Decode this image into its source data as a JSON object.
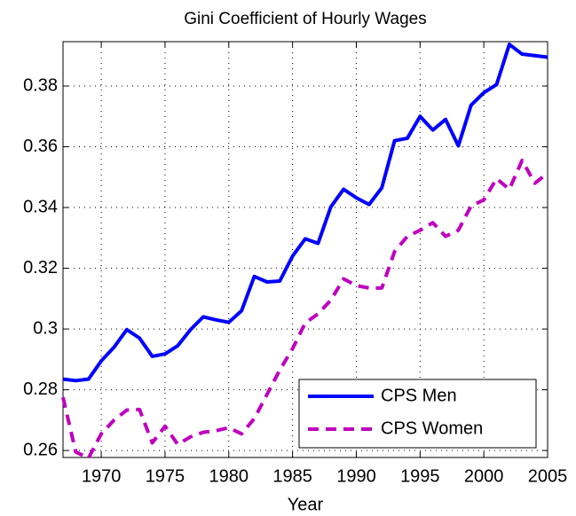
{
  "chart_data": {
    "type": "line",
    "title": "Gini Coefficient of Hourly Wages",
    "x_label": "Year",
    "x": [
      1967,
      1968,
      1969,
      1970,
      1971,
      1972,
      1973,
      1974,
      1975,
      1976,
      1977,
      1978,
      1979,
      1980,
      1981,
      1982,
      1983,
      1984,
      1985,
      1986,
      1987,
      1988,
      1989,
      1990,
      1991,
      1992,
      1993,
      1994,
      1995,
      1996,
      1997,
      1998,
      1999,
      2000,
      2001,
      2002,
      2003,
      2004,
      2005
    ],
    "series": [
      {
        "name": "CPS Men",
        "color": "#0000ff",
        "dash": false,
        "values": [
          0.2835,
          0.283,
          0.2835,
          0.2895,
          0.294,
          0.2998,
          0.297,
          0.291,
          0.2918,
          0.2945,
          0.2998,
          0.304,
          0.303,
          0.3022,
          0.306,
          0.3173,
          0.3155,
          0.3158,
          0.324,
          0.3297,
          0.3282,
          0.3402,
          0.346,
          0.3432,
          0.341,
          0.3465,
          0.362,
          0.3628,
          0.37,
          0.3655,
          0.369,
          0.3603,
          0.3737,
          0.3778,
          0.3805,
          0.3937,
          0.3905,
          0.39,
          0.3895
        ]
      },
      {
        "name": "CPS Women",
        "color": "#bf00bf",
        "dash": true,
        "values": [
          0.2775,
          0.2595,
          0.2575,
          0.2655,
          0.27,
          0.2733,
          0.2735,
          0.2625,
          0.268,
          0.262,
          0.2645,
          0.266,
          0.2665,
          0.2675,
          0.2655,
          0.2705,
          0.2785,
          0.2865,
          0.2935,
          0.302,
          0.305,
          0.3095,
          0.3165,
          0.3143,
          0.3135,
          0.3135,
          0.3255,
          0.3305,
          0.3325,
          0.335,
          0.3305,
          0.3325,
          0.3405,
          0.3425,
          0.3495,
          0.346,
          0.3555,
          0.348,
          0.3513
        ]
      }
    ],
    "xlim": [
      1967,
      2005
    ],
    "xticks": [
      1970,
      1975,
      1980,
      1985,
      1990,
      1995,
      2000,
      2005
    ],
    "ylim": [
      0.2577,
      0.3946
    ],
    "yticks": [
      0.26,
      0.28,
      0.3,
      0.32,
      0.34,
      0.36,
      0.38
    ],
    "grid": true,
    "legend": "lower right"
  }
}
